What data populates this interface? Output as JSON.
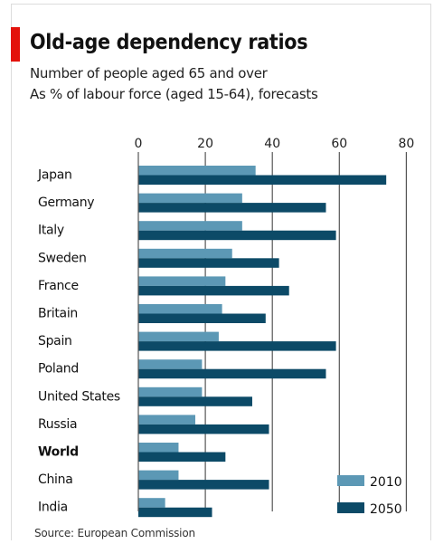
{
  "title": "Old-age dependency ratios",
  "subtitle": [
    "Number of people aged 65 and over",
    "As % of labour force (aged 15-64), forecasts"
  ],
  "source": "Source: European Commission",
  "colors": {
    "accent": "#e3120b",
    "series_2010": "#5c98b5",
    "series_2050": "#0c4a67",
    "gridline": "#555555"
  },
  "chart_data": {
    "type": "bar",
    "orientation": "horizontal",
    "title": "Old-age dependency ratios",
    "subtitle": "Number of people aged 65 and over / As % of labour force (aged 15-64), forecasts",
    "xlim": [
      0,
      80
    ],
    "xticks": [
      "0",
      "20",
      "40",
      "60",
      "80"
    ],
    "xaxis_position": "top",
    "grid": true,
    "legend": "bottom-right",
    "categories": [
      "Japan",
      "Germany",
      "Italy",
      "Sweden",
      "France",
      "Britain",
      "Spain",
      "Poland",
      "United States",
      "Russia",
      "World",
      "China",
      "India"
    ],
    "emphasized_category": "World",
    "series": [
      {
        "name": "2010",
        "color": "#5c98b5",
        "values": [
          35,
          31,
          31,
          28,
          26,
          25,
          24,
          19,
          19,
          17,
          12,
          12,
          8
        ]
      },
      {
        "name": "2050",
        "color": "#0c4a67",
        "values": [
          74,
          56,
          59,
          42,
          45,
          38,
          59,
          56,
          34,
          39,
          26,
          39,
          22
        ]
      }
    ]
  }
}
